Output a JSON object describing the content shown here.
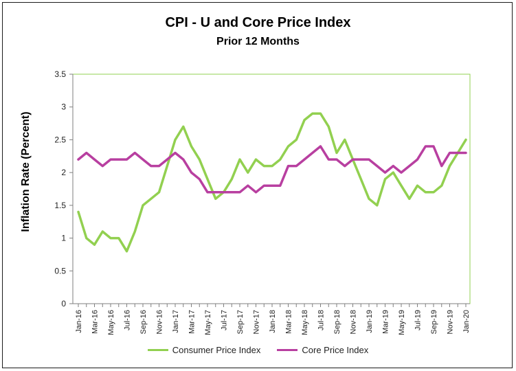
{
  "chart_data": {
    "type": "line",
    "title": "CPI - U and Core Price Index",
    "subtitle": "Prior 12 Months",
    "xlabel": "",
    "ylabel": "Inflation Rate (Percent)",
    "ylim": [
      0,
      3.5
    ],
    "yticks": [
      "0",
      "0.5",
      "1",
      "1.5",
      "2",
      "2.5",
      "3",
      "3.5"
    ],
    "grid": false,
    "legend_position": "bottom",
    "categories": [
      "Jan-16",
      "Feb-16",
      "Mar-16",
      "Apr-16",
      "May-16",
      "Jun-16",
      "Jul-16",
      "Aug-16",
      "Sep-16",
      "Oct-16",
      "Nov-16",
      "Dec-16",
      "Jan-17",
      "Feb-17",
      "Mar-17",
      "Apr-17",
      "May-17",
      "Jun-17",
      "Jul-17",
      "Aug-17",
      "Sep-17",
      "Oct-17",
      "Nov-17",
      "Dec-17",
      "Jan-18",
      "Feb-18",
      "Mar-18",
      "Apr-18",
      "May-18",
      "Jun-18",
      "Jul-18",
      "Aug-18",
      "Sep-18",
      "Oct-18",
      "Nov-18",
      "Dec-18",
      "Jan-19",
      "Feb-19",
      "Mar-19",
      "Apr-19",
      "May-19",
      "Jun-19",
      "Jul-19",
      "Aug-19",
      "Sep-19",
      "Oct-19",
      "Nov-19",
      "Dec-19",
      "Jan-20"
    ],
    "tick_labels": [
      "Jan-16",
      "Mar-16",
      "May-16",
      "Jul-16",
      "Sep-16",
      "Nov-16",
      "Jan-17",
      "Mar-17",
      "May-17",
      "Jul-17",
      "Sep-17",
      "Nov-17",
      "Jan-18",
      "Mar-18",
      "May-18",
      "Jul-18",
      "Sep-18",
      "Nov-18",
      "Jan-19",
      "Mar-19",
      "May-19",
      "Jul-19",
      "Sep-19",
      "Nov-19",
      "Jan-20"
    ],
    "series": [
      {
        "name": "Consumer Price Index",
        "color": "#92d050",
        "values": [
          1.4,
          1.0,
          0.9,
          1.1,
          1.0,
          1.0,
          0.8,
          1.1,
          1.5,
          1.6,
          1.7,
          2.1,
          2.5,
          2.7,
          2.4,
          2.2,
          1.9,
          1.6,
          1.7,
          1.9,
          2.2,
          2.0,
          2.2,
          2.1,
          2.1,
          2.2,
          2.4,
          2.5,
          2.8,
          2.9,
          2.9,
          2.7,
          2.3,
          2.5,
          2.2,
          1.9,
          1.6,
          1.5,
          1.9,
          2.0,
          1.8,
          1.6,
          1.8,
          1.7,
          1.7,
          1.8,
          2.1,
          2.3,
          2.5
        ]
      },
      {
        "name": "Core Price Index",
        "color": "#b83fa0",
        "values": [
          2.2,
          2.3,
          2.2,
          2.1,
          2.2,
          2.2,
          2.2,
          2.3,
          2.2,
          2.1,
          2.1,
          2.2,
          2.3,
          2.2,
          2.0,
          1.9,
          1.7,
          1.7,
          1.7,
          1.7,
          1.7,
          1.8,
          1.7,
          1.8,
          1.8,
          1.8,
          2.1,
          2.1,
          2.2,
          2.3,
          2.4,
          2.2,
          2.2,
          2.1,
          2.2,
          2.2,
          2.2,
          2.1,
          2.0,
          2.1,
          2.0,
          2.1,
          2.2,
          2.4,
          2.4,
          2.1,
          2.3,
          2.3,
          2.3
        ]
      }
    ],
    "colors": {
      "axis": "#7f7f7f",
      "plot_border": "#92d050",
      "text": "#000000"
    }
  }
}
